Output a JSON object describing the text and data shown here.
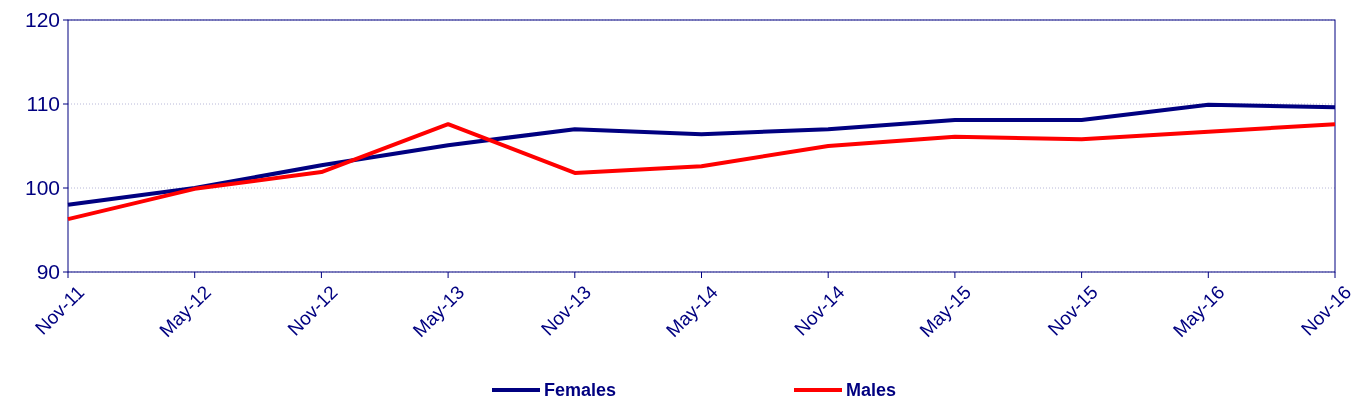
{
  "chart_data": {
    "type": "line",
    "categories": [
      "Nov-11",
      "May-12",
      "Nov-12",
      "May-13",
      "Nov-13",
      "May-14",
      "Nov-14",
      "May-15",
      "Nov-15",
      "May-16",
      "Nov-16"
    ],
    "series": [
      {
        "name": "Females",
        "color": "#000080",
        "values": [
          98.0,
          100.0,
          102.7,
          105.1,
          107.0,
          106.4,
          107.0,
          108.1,
          108.1,
          109.9,
          109.6
        ]
      },
      {
        "name": "Males",
        "color": "#ff0000",
        "values": [
          96.3,
          99.9,
          101.9,
          107.6,
          101.8,
          102.6,
          105.0,
          106.1,
          105.8,
          106.7,
          107.6
        ]
      }
    ],
    "ylim": [
      90,
      120
    ],
    "yticks": [
      90,
      100,
      110,
      120
    ],
    "grid": "y",
    "legend": "bottom",
    "marker": "none",
    "line_style": "solid"
  }
}
